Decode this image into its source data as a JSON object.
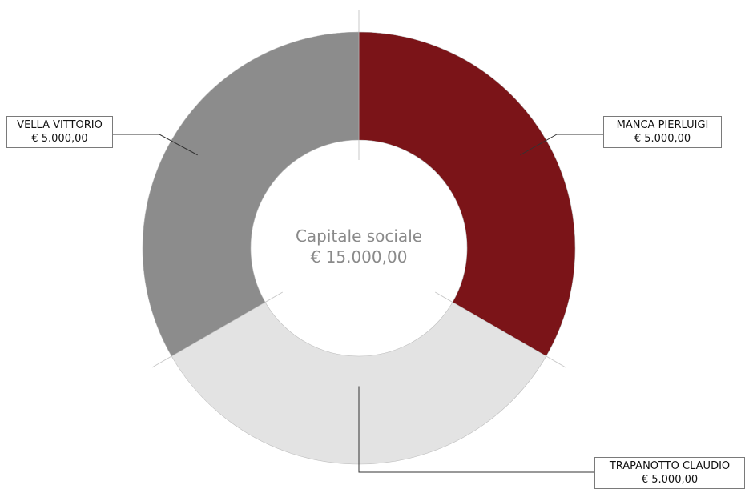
{
  "chart_data": {
    "type": "pie",
    "variant": "donut",
    "center_title": "Capitale sociale",
    "center_value": "€ 15.000,00",
    "slices": [
      {
        "name": "MANCA PIERLUIGI",
        "value": 5000,
        "value_label": "€ 5.000,00",
        "color": "#7b1418"
      },
      {
        "name": "TRAPANOTTO CLAUDIO",
        "value": 5000,
        "value_label": "€ 5.000,00",
        "color": "#e3e3e3"
      },
      {
        "name": "VELLA VITTORIO",
        "value": 5000,
        "value_label": "€ 5.000,00",
        "color": "#8c8c8c"
      }
    ]
  }
}
